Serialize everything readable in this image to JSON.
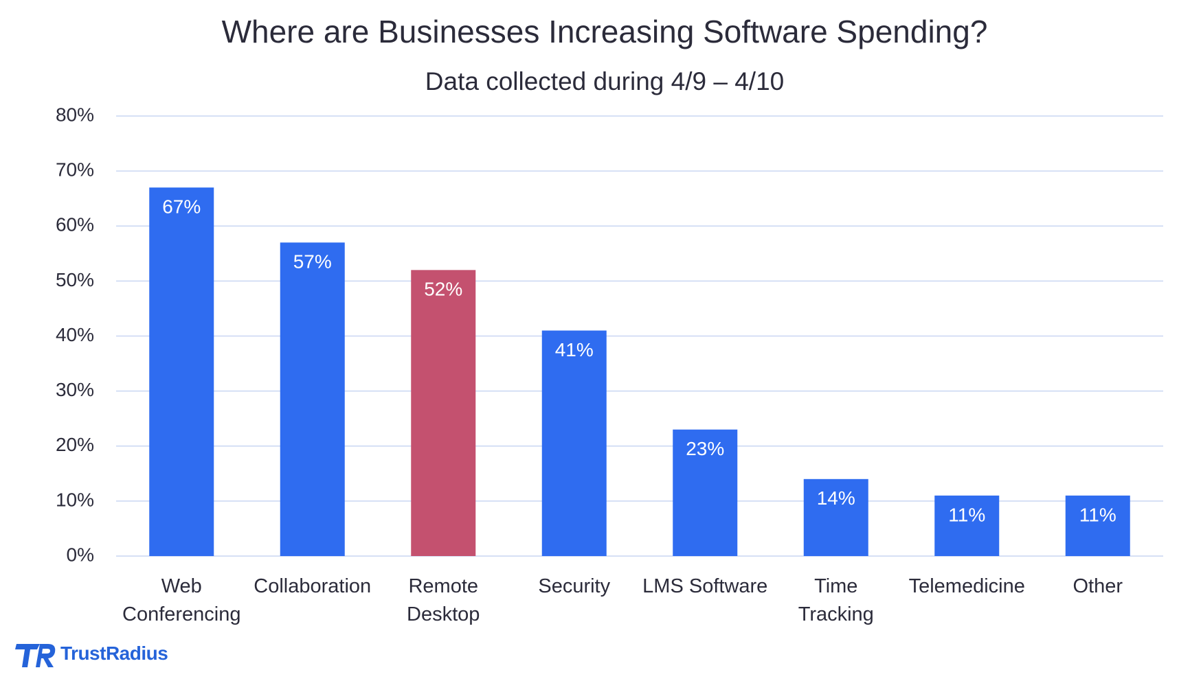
{
  "chart_data": {
    "type": "bar",
    "title": "Where are Businesses Increasing Software Spending?",
    "subtitle": "Data collected during 4/9 – 4/10",
    "categories": [
      "Web\nConferencing",
      "Collaboration",
      "Remote\nDesktop",
      "Security",
      "LMS Software",
      "Time\nTracking",
      "Telemedicine",
      "Other"
    ],
    "values": [
      67,
      57,
      52,
      41,
      23,
      14,
      11,
      11
    ],
    "value_labels": [
      "67%",
      "57%",
      "52%",
      "41%",
      "23%",
      "14%",
      "11%",
      "11%"
    ],
    "colors": [
      "#2f6cf0",
      "#2f6cf0",
      "#c4516f",
      "#2f6cf0",
      "#2f6cf0",
      "#2f6cf0",
      "#2f6cf0",
      "#2f6cf0"
    ],
    "ylim": [
      0,
      80
    ],
    "yticks": [
      {
        "value": 0,
        "label": "0%"
      },
      {
        "value": 10,
        "label": "10%"
      },
      {
        "value": 20,
        "label": "20%"
      },
      {
        "value": 30,
        "label": "30%"
      },
      {
        "value": 40,
        "label": "40%"
      },
      {
        "value": 50,
        "label": "50%"
      },
      {
        "value": 60,
        "label": "60%"
      },
      {
        "value": 70,
        "label": "70%"
      },
      {
        "value": 80,
        "label": "80%"
      }
    ],
    "grid": true
  },
  "footer": {
    "logo": "TrustRadius"
  }
}
